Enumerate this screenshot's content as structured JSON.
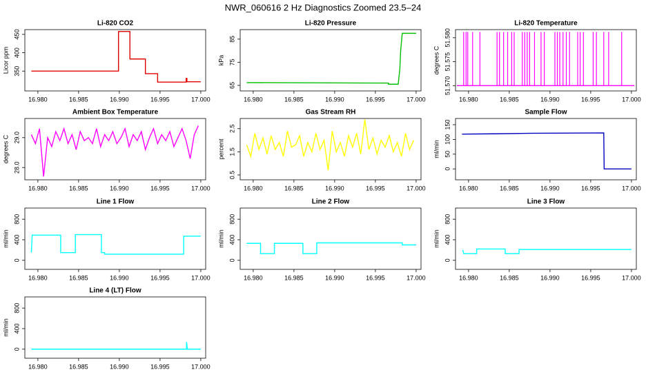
{
  "title": "NWR_060616  2 Hz Diagnostics Zoomed 23.5–24",
  "chart_data": [
    {
      "type": "line",
      "title": "Li-820 CO2",
      "ylabel": "Licor ppm",
      "color": "#e00000",
      "x": [
        16.9792,
        16.9899,
        16.9899,
        16.9913,
        16.9913,
        16.9932,
        16.9932,
        16.9947,
        16.9947,
        16.9982,
        16.9982,
        16.9983,
        16.9983,
        17.0
      ],
      "values": [
        350,
        350,
        458,
        458,
        383,
        383,
        343,
        343,
        320,
        320,
        330,
        330,
        321,
        321
      ],
      "xlim": [
        16.9784,
        17.0006
      ],
      "ylim": [
        296,
        463
      ],
      "yticks": [
        350,
        400,
        450
      ],
      "xticks": [
        {
          "value": 16.98,
          "label": "16.980"
        },
        {
          "value": 16.985,
          "label": "16.985"
        },
        {
          "value": 16.99,
          "label": "16.990"
        },
        {
          "value": 16.995,
          "label": "16.995"
        },
        {
          "value": 17,
          "label": "17.000"
        }
      ]
    },
    {
      "type": "line",
      "title": "Li-820 Pressure",
      "ylabel": "kPa",
      "color": "#00c000",
      "x": [
        16.9792,
        16.9966,
        16.9966,
        16.9978,
        16.998,
        16.9981,
        16.9983,
        17.0
      ],
      "values": [
        66.2,
        66.0,
        65.5,
        65.5,
        72,
        80,
        87.5,
        87.5
      ],
      "xlim": [
        16.9784,
        17.0006
      ],
      "ylim": [
        62.6,
        89.1
      ],
      "yticks": [
        65,
        75,
        85
      ],
      "xticks": [
        {
          "value": 16.98,
          "label": "16.980"
        },
        {
          "value": 16.985,
          "label": "16.985"
        },
        {
          "value": 16.99,
          "label": "16.990"
        },
        {
          "value": 16.995,
          "label": "16.995"
        },
        {
          "value": 17,
          "label": "17.000"
        }
      ]
    },
    {
      "type": "spike",
      "title": "Li-820 Temperature",
      "ylabel": "degrees C",
      "color": "#ff00ff",
      "baseline": 51.57,
      "x": [
        16.9794,
        16.9797,
        16.9799,
        16.9805,
        16.9814,
        16.9835,
        16.9838,
        16.9843,
        16.9848,
        16.9853,
        16.9856,
        16.9866,
        16.9869,
        16.9872,
        16.9875,
        16.9881,
        16.9889,
        16.9893,
        16.9906,
        16.9909,
        16.9912,
        16.9916,
        16.992,
        16.9924,
        16.9934,
        16.9937,
        16.9941,
        16.9953,
        16.9957,
        16.9966,
        16.9972,
        16.9988
      ],
      "values": [
        51.5812,
        51.5812,
        51.5812,
        51.5812,
        51.5812,
        51.5812,
        51.5812,
        51.5812,
        51.5812,
        51.5812,
        51.5812,
        51.5812,
        51.5812,
        51.5812,
        51.5812,
        51.5812,
        51.5812,
        51.5812,
        51.5812,
        51.5812,
        51.5812,
        51.5812,
        51.5812,
        51.5812,
        51.5812,
        51.5812,
        51.5812,
        51.5812,
        51.5812,
        51.5812,
        51.5812,
        51.5812
      ],
      "xlim": [
        16.9784,
        17.0006
      ],
      "ylim": [
        51.5689,
        51.5817
      ],
      "yticks": [
        {
          "value": 51.57,
          "label": "51.570"
        },
        {
          "value": 51.575,
          "label": "51.575"
        },
        {
          "value": 51.58,
          "label": "51.580"
        }
      ],
      "xticks": [
        {
          "value": 16.98,
          "label": "16.980"
        },
        {
          "value": 16.985,
          "label": "16.985"
        },
        {
          "value": 16.99,
          "label": "16.990"
        },
        {
          "value": 16.995,
          "label": "16.995"
        },
        {
          "value": 17,
          "label": "17.000"
        }
      ]
    },
    {
      "type": "line",
      "title": "Ambient Box Temperature",
      "ylabel": "degrees C",
      "color": "#ff00ff",
      "x": [
        16.9792,
        16.9797,
        16.9802,
        16.9807,
        16.9812,
        16.9817,
        16.9822,
        16.9827,
        16.9832,
        16.9837,
        16.9842,
        16.9847,
        16.9852,
        16.9857,
        16.9862,
        16.9867,
        16.9872,
        16.9877,
        16.9882,
        16.9887,
        16.9892,
        16.9897,
        16.9902,
        16.9907,
        16.9912,
        16.9917,
        16.9922,
        16.9927,
        16.9932,
        16.9937,
        16.9942,
        16.9947,
        16.9952,
        16.9957,
        16.9962,
        16.9967,
        16.9972,
        16.9977,
        16.9982,
        16.9987,
        16.9992,
        16.9997
      ],
      "values": [
        29.1,
        28.8,
        29.3,
        27.7,
        29.0,
        28.7,
        29.2,
        28.9,
        29.3,
        28.8,
        29.1,
        28.6,
        29.2,
        28.9,
        29.0,
        28.8,
        29.3,
        28.7,
        29.1,
        28.9,
        29.2,
        28.8,
        29.0,
        29.3,
        28.7,
        29.1,
        28.9,
        29.2,
        28.6,
        29.0,
        29.3,
        28.8,
        29.1,
        28.9,
        29.2,
        28.7,
        29.0,
        29.3,
        28.9,
        28.3,
        29.1,
        29.4
      ],
      "xlim": [
        16.9784,
        17.0006
      ],
      "ylim": [
        27.59,
        29.64
      ],
      "yticks": [
        {
          "value": 28,
          "label": "28.0"
        },
        {
          "value": 29,
          "label": "29.0"
        }
      ],
      "xticks": [
        {
          "value": 16.98,
          "label": "16.980"
        },
        {
          "value": 16.985,
          "label": "16.985"
        },
        {
          "value": 16.99,
          "label": "16.990"
        },
        {
          "value": 16.995,
          "label": "16.995"
        },
        {
          "value": 17,
          "label": "17.000"
        }
      ]
    },
    {
      "type": "line",
      "title": "Gas Stream RH",
      "ylabel": "percent",
      "color": "#ffff00",
      "x": [
        16.9792,
        16.9797,
        16.9802,
        16.9807,
        16.9812,
        16.9817,
        16.9822,
        16.9827,
        16.9832,
        16.9837,
        16.9842,
        16.9847,
        16.9852,
        16.9857,
        16.9862,
        16.9867,
        16.9872,
        16.9877,
        16.9882,
        16.9887,
        16.9892,
        16.9897,
        16.9902,
        16.9907,
        16.9912,
        16.9917,
        16.9922,
        16.9927,
        16.9932,
        16.9937,
        16.9942,
        16.9947,
        16.9952,
        16.9957,
        16.9962,
        16.9967,
        16.9972,
        16.9977,
        16.9982,
        16.9987,
        16.9992,
        16.9997
      ],
      "values": [
        1.8,
        1.3,
        2.3,
        1.6,
        2.1,
        1.4,
        2.2,
        1.6,
        1.9,
        1.3,
        2.4,
        1.7,
        1.8,
        2.2,
        1.3,
        1.9,
        1.5,
        2.3,
        1.6,
        2.0,
        0.7,
        2.4,
        1.5,
        1.9,
        1.3,
        2.2,
        1.7,
        2.3,
        1.4,
        2.9,
        1.6,
        2.1,
        1.4,
        2.0,
        1.7,
        2.2,
        1.5,
        1.9,
        1.3,
        2.3,
        1.6,
        2.0
      ],
      "xlim": [
        16.9784,
        17.0006
      ],
      "ylim": [
        0.29,
        2.94
      ],
      "yticks": [
        0.5,
        1.5,
        2.5
      ],
      "xticks": [
        {
          "value": 16.98,
          "label": "16.980"
        },
        {
          "value": 16.985,
          "label": "16.985"
        },
        {
          "value": 16.99,
          "label": "16.990"
        },
        {
          "value": 16.995,
          "label": "16.995"
        },
        {
          "value": 17,
          "label": "17.000"
        }
      ]
    },
    {
      "type": "line",
      "title": "Sample Flow",
      "ylabel": "ml/min",
      "color": "#0000c0",
      "x": [
        16.9792,
        16.983,
        16.988,
        16.9966,
        16.99665,
        17.0
      ],
      "values": [
        118,
        119,
        121,
        122,
        0,
        0
      ],
      "xlim": [
        16.9784,
        17.0006
      ],
      "ylim": [
        -37,
        171
      ],
      "yticks": [
        0,
        50,
        100,
        150
      ],
      "xticks": [
        {
          "value": 16.98,
          "label": "16.980"
        },
        {
          "value": 16.985,
          "label": "16.985"
        },
        {
          "value": 16.99,
          "label": "16.990"
        },
        {
          "value": 16.995,
          "label": "16.995"
        },
        {
          "value": 17,
          "label": "17.000"
        }
      ]
    },
    {
      "type": "line",
      "title": "Line 1 Flow",
      "ylabel": "ml/min",
      "color": "#00ffff",
      "x": [
        16.9792,
        16.9793,
        16.9828,
        16.9828,
        16.9846,
        16.9846,
        16.9878,
        16.9878,
        16.9882,
        16.9882,
        16.9979,
        16.9979,
        17.0
      ],
      "values": [
        150,
        490,
        490,
        150,
        150,
        500,
        500,
        150,
        150,
        120,
        120,
        470,
        470
      ],
      "xlim": [
        16.9784,
        17.0006
      ],
      "ylim": [
        -176,
        1017
      ],
      "yticks": [
        0,
        400,
        800
      ],
      "xticks": [
        {
          "value": 16.98,
          "label": "16.980"
        },
        {
          "value": 16.985,
          "label": "16.985"
        },
        {
          "value": 16.99,
          "label": "16.990"
        },
        {
          "value": 16.995,
          "label": "16.995"
        },
        {
          "value": 17,
          "label": "17.000"
        }
      ]
    },
    {
      "type": "line",
      "title": "Line 2 Flow",
      "ylabel": "ml/min",
      "color": "#00ffff",
      "x": [
        16.9792,
        16.9809,
        16.9809,
        16.9826,
        16.9826,
        16.9861,
        16.9861,
        16.9878,
        16.9878,
        16.9983,
        16.9983,
        17.0
      ],
      "values": [
        330,
        330,
        130,
        130,
        330,
        330,
        130,
        130,
        340,
        340,
        300,
        300
      ],
      "xlim": [
        16.9784,
        17.0006
      ],
      "ylim": [
        -176,
        1017
      ],
      "yticks": [
        0,
        400,
        800
      ],
      "xticks": [
        {
          "value": 16.98,
          "label": "16.980"
        },
        {
          "value": 16.985,
          "label": "16.985"
        },
        {
          "value": 16.99,
          "label": "16.990"
        },
        {
          "value": 16.995,
          "label": "16.995"
        },
        {
          "value": 17,
          "label": "17.000"
        }
      ]
    },
    {
      "type": "line",
      "title": "Line 3 Flow",
      "ylabel": "ml/min",
      "color": "#00ffff",
      "x": [
        16.9793,
        16.9794,
        16.981,
        16.981,
        16.9845,
        16.9845,
        16.9862,
        16.9862,
        17.0
      ],
      "values": [
        200,
        130,
        130,
        220,
        220,
        130,
        130,
        210,
        210
      ],
      "xlim": [
        16.9784,
        17.0006
      ],
      "ylim": [
        -176,
        1017
      ],
      "yticks": [
        0,
        400,
        800
      ],
      "xticks": [
        {
          "value": 16.98,
          "label": "16.980"
        },
        {
          "value": 16.985,
          "label": "16.985"
        },
        {
          "value": 16.99,
          "label": "16.990"
        },
        {
          "value": 16.995,
          "label": "16.995"
        },
        {
          "value": 17,
          "label": "17.000"
        }
      ]
    },
    {
      "type": "line",
      "title": "Line 4 (LT) Flow",
      "ylabel": "ml/min",
      "color": "#00ffff",
      "x": [
        16.9792,
        16.99825,
        16.99826,
        16.99835,
        17.0
      ],
      "values": [
        0,
        0,
        140,
        0,
        0
      ],
      "xlim": [
        16.9784,
        17.0006
      ],
      "ylim": [
        -176,
        1017
      ],
      "yticks": [
        0,
        400,
        800
      ],
      "xticks": [
        {
          "value": 16.98,
          "label": "16.980"
        },
        {
          "value": 16.985,
          "label": "16.985"
        },
        {
          "value": 16.99,
          "label": "16.990"
        },
        {
          "value": 16.995,
          "label": "16.995"
        },
        {
          "value": 17,
          "label": "17.000"
        }
      ]
    }
  ]
}
